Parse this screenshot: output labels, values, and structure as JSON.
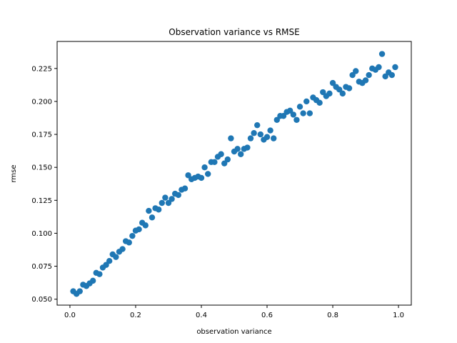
{
  "chart_data": {
    "type": "scatter",
    "title": "Observation variance vs RMSE",
    "xlabel": "observation variance",
    "ylabel": "rmse",
    "xlim": [
      -0.039,
      1.039
    ],
    "ylim": [
      0.0455,
      0.2455
    ],
    "xticks": [
      0.0,
      0.2,
      0.4,
      0.6,
      0.8,
      1.0
    ],
    "xtick_labels": [
      "0.0",
      "0.2",
      "0.4",
      "0.6",
      "0.8",
      "1.0"
    ],
    "yticks": [
      0.05,
      0.075,
      0.1,
      0.125,
      0.15,
      0.175,
      0.2,
      0.225
    ],
    "ytick_labels": [
      "0.050",
      "0.075",
      "0.100",
      "0.125",
      "0.150",
      "0.175",
      "0.200",
      "0.225"
    ],
    "grid": false,
    "marker_color": "#1f77b4",
    "series": [
      {
        "x": [
          0.01,
          0.02,
          0.03,
          0.04,
          0.05,
          0.06,
          0.07,
          0.08,
          0.09,
          0.1,
          0.11,
          0.12,
          0.13,
          0.14,
          0.15,
          0.16,
          0.17,
          0.18,
          0.19,
          0.2,
          0.21,
          0.22,
          0.23,
          0.24,
          0.25,
          0.26,
          0.27,
          0.28,
          0.29,
          0.3,
          0.31,
          0.32,
          0.33,
          0.34,
          0.35,
          0.36,
          0.37,
          0.38,
          0.39,
          0.4,
          0.41,
          0.42,
          0.43,
          0.44,
          0.45,
          0.46,
          0.47,
          0.48,
          0.49,
          0.5,
          0.51,
          0.52,
          0.53,
          0.54,
          0.55,
          0.56,
          0.57,
          0.58,
          0.59,
          0.6,
          0.61,
          0.62,
          0.63,
          0.64,
          0.65,
          0.66,
          0.67,
          0.68,
          0.69,
          0.7,
          0.71,
          0.72,
          0.73,
          0.74,
          0.75,
          0.76,
          0.77,
          0.78,
          0.79,
          0.8,
          0.81,
          0.82,
          0.83,
          0.84,
          0.85,
          0.86,
          0.87,
          0.88,
          0.89,
          0.9,
          0.91,
          0.92,
          0.93,
          0.94,
          0.95,
          0.96,
          0.97,
          0.98,
          0.99
        ],
        "y": [
          0.056,
          0.054,
          0.056,
          0.061,
          0.06,
          0.062,
          0.064,
          0.07,
          0.069,
          0.074,
          0.076,
          0.079,
          0.084,
          0.082,
          0.086,
          0.088,
          0.094,
          0.093,
          0.098,
          0.102,
          0.103,
          0.108,
          0.106,
          0.117,
          0.112,
          0.119,
          0.118,
          0.123,
          0.127,
          0.123,
          0.126,
          0.13,
          0.129,
          0.133,
          0.134,
          0.144,
          0.141,
          0.142,
          0.143,
          0.142,
          0.15,
          0.145,
          0.154,
          0.154,
          0.158,
          0.16,
          0.153,
          0.156,
          0.172,
          0.162,
          0.164,
          0.16,
          0.164,
          0.165,
          0.172,
          0.176,
          0.182,
          0.175,
          0.171,
          0.173,
          0.178,
          0.172,
          0.186,
          0.189,
          0.189,
          0.192,
          0.193,
          0.19,
          0.186,
          0.196,
          0.191,
          0.2,
          0.191,
          0.203,
          0.201,
          0.199,
          0.207,
          0.204,
          0.206,
          0.214,
          0.211,
          0.209,
          0.206,
          0.211,
          0.21,
          0.22,
          0.223,
          0.215,
          0.214,
          0.216,
          0.22,
          0.225,
          0.224,
          0.226,
          0.236,
          0.219,
          0.222,
          0.22,
          0.226
        ]
      }
    ]
  }
}
